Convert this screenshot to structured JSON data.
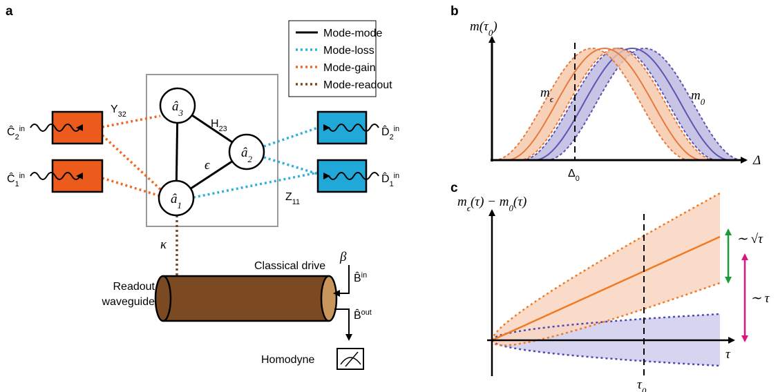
{
  "panel_labels": [
    "a",
    "b",
    "c"
  ],
  "diagram": {
    "legend": [
      "Mode-mode",
      "Mode-loss",
      "Mode-gain",
      "Mode-readout"
    ],
    "modes": [
      [
        {
          "t": "â"
        },
        {
          "t": "3",
          "pos": "sub"
        }
      ],
      [
        {
          "t": "â"
        },
        {
          "t": "2",
          "pos": "sub"
        }
      ],
      [
        {
          "t": "â"
        },
        {
          "t": "1",
          "pos": "sub"
        }
      ]
    ],
    "gain_ports": [
      [
        {
          "t": "Ĉ"
        },
        {
          "t": "2",
          "pos": "sub"
        },
        {
          "t": "in",
          "pos": "sup"
        }
      ],
      [
        {
          "t": "Ĉ"
        },
        {
          "t": "1",
          "pos": "sub"
        },
        {
          "t": "in",
          "pos": "sup"
        }
      ]
    ],
    "loss_ports": [
      [
        {
          "t": "D̂"
        },
        {
          "t": "2",
          "pos": "sub"
        },
        {
          "t": "in",
          "pos": "sup"
        }
      ],
      [
        {
          "t": "D̂"
        },
        {
          "t": "1",
          "pos": "sub"
        },
        {
          "t": "in",
          "pos": "sup"
        }
      ]
    ],
    "gain_coupling": [
      {
        "t": "Y"
      },
      {
        "t": "32",
        "pos": "sub"
      }
    ],
    "mode_coupling": [
      {
        "t": "H"
      },
      {
        "t": "23",
        "pos": "sub"
      }
    ],
    "loss_coupling": [
      {
        "t": "Z"
      },
      {
        "t": "11",
        "pos": "sub"
      }
    ],
    "perturbation": "ϵ",
    "readout_rate": "κ",
    "drive_label": "Classical drive",
    "drive_amplitude": "β",
    "input_field": [
      {
        "t": "B̂"
      },
      {
        "t": "in",
        "pos": "sup"
      }
    ],
    "output_field": [
      {
        "t": "B̂"
      },
      {
        "t": "out",
        "pos": "sup"
      }
    ],
    "waveguide_label": [
      "Readout",
      "waveguide"
    ],
    "detector_label": "Homodyne"
  },
  "plot_b": {
    "ylabel": [
      {
        "t": "m(τ"
      },
      {
        "t": "0",
        "pos": "sub"
      },
      {
        "t": ")"
      }
    ],
    "perturbed_label": [
      {
        "t": "m"
      },
      {
        "t": "ϵ",
        "pos": "sub"
      }
    ],
    "unperturbed_label": [
      {
        "t": "m"
      },
      {
        "t": "0",
        "pos": "sub"
      }
    ],
    "xlabel": "Δ",
    "marker_label": [
      {
        "t": "Δ"
      },
      {
        "t": "0",
        "pos": "sub"
      }
    ]
  },
  "plot_c": {
    "ylabel": [
      {
        "t": "m"
      },
      {
        "t": "ϵ",
        "pos": "sub"
      },
      {
        "t": "(τ) − m"
      },
      {
        "t": "0",
        "pos": "sub"
      },
      {
        "t": "(τ)"
      }
    ],
    "noise_scaling": "∼ √τ",
    "signal_scaling": "∼ τ",
    "xlabel": "τ",
    "marker_label": [
      {
        "t": "τ"
      },
      {
        "t": "0",
        "pos": "sub"
      }
    ]
  }
}
